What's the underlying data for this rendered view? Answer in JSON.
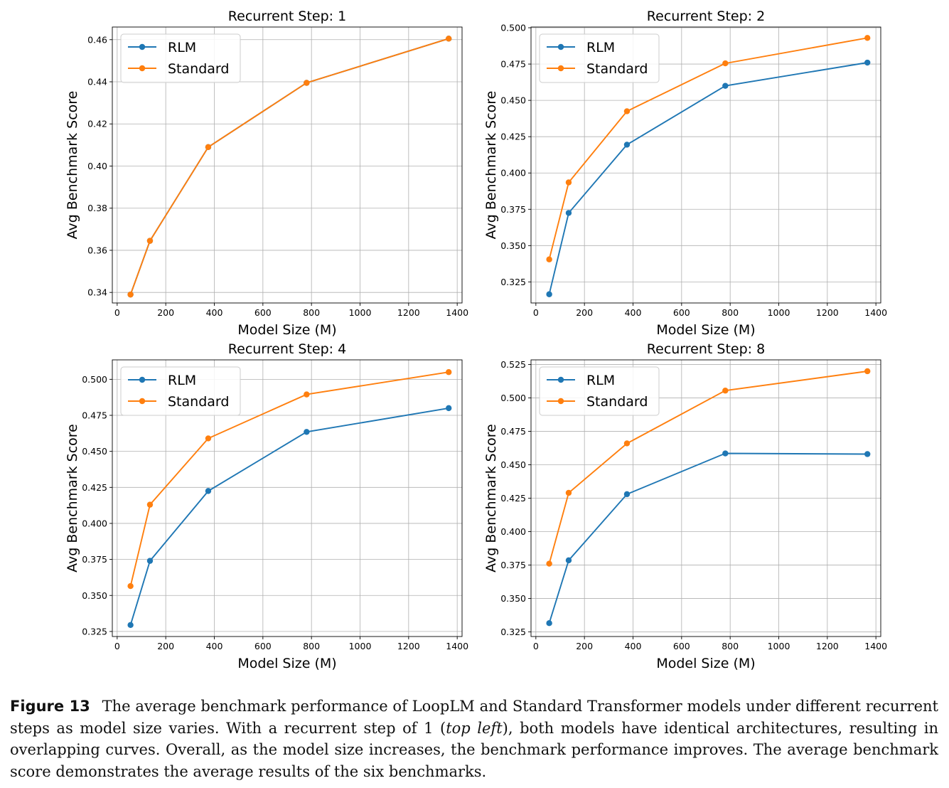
{
  "chart_data": [
    {
      "type": "line",
      "title": "Recurrent Step: 1",
      "xlabel": "Model Size (M)",
      "ylabel": "Avg Benchmark Score",
      "xlim": [
        -20,
        1420
      ],
      "ylim": [
        0.335,
        0.466
      ],
      "xticks": [
        0,
        200,
        400,
        600,
        800,
        1000,
        1200,
        1400
      ],
      "yticks": [
        0.34,
        0.36,
        0.38,
        0.4,
        0.42,
        0.44,
        0.46
      ],
      "ytick_labels": [
        "0.34",
        "0.36",
        "0.38",
        "0.40",
        "0.42",
        "0.44",
        "0.46"
      ],
      "grid": true,
      "legend": "upper-left",
      "x": [
        55,
        135,
        375,
        780,
        1365
      ],
      "series": [
        {
          "name": "RLM",
          "color": "#1f77b4",
          "values": [
            0.339,
            0.3645,
            0.409,
            0.4395,
            0.4605
          ]
        },
        {
          "name": "Standard",
          "color": "#ff7f0e",
          "values": [
            0.339,
            0.3645,
            0.409,
            0.4395,
            0.4605
          ]
        }
      ]
    },
    {
      "type": "line",
      "title": "Recurrent Step: 2",
      "xlabel": "Model Size (M)",
      "ylabel": "Avg Benchmark Score",
      "xlim": [
        -20,
        1420
      ],
      "ylim": [
        0.3105,
        0.5005
      ],
      "xticks": [
        0,
        200,
        400,
        600,
        800,
        1000,
        1200,
        1400
      ],
      "yticks": [
        0.325,
        0.35,
        0.375,
        0.4,
        0.425,
        0.45,
        0.475,
        0.5
      ],
      "ytick_labels": [
        "0.325",
        "0.350",
        "0.375",
        "0.400",
        "0.425",
        "0.450",
        "0.475",
        "0.500"
      ],
      "grid": true,
      "legend": "upper-left",
      "x": [
        55,
        135,
        375,
        780,
        1365
      ],
      "series": [
        {
          "name": "RLM",
          "color": "#1f77b4",
          "values": [
            0.3165,
            0.3725,
            0.4195,
            0.46,
            0.476
          ]
        },
        {
          "name": "Standard",
          "color": "#ff7f0e",
          "values": [
            0.3405,
            0.3935,
            0.4425,
            0.4755,
            0.493
          ]
        }
      ]
    },
    {
      "type": "line",
      "title": "Recurrent Step: 4",
      "xlabel": "Model Size (M)",
      "ylabel": "Avg Benchmark Score",
      "xlim": [
        -20,
        1420
      ],
      "ylim": [
        0.3215,
        0.5135
      ],
      "xticks": [
        0,
        200,
        400,
        600,
        800,
        1000,
        1200,
        1400
      ],
      "yticks": [
        0.325,
        0.35,
        0.375,
        0.4,
        0.425,
        0.45,
        0.475,
        0.5
      ],
      "ytick_labels": [
        "0.325",
        "0.350",
        "0.375",
        "0.400",
        "0.425",
        "0.450",
        "0.475",
        "0.500"
      ],
      "grid": true,
      "legend": "upper-left",
      "x": [
        55,
        135,
        375,
        780,
        1365
      ],
      "series": [
        {
          "name": "RLM",
          "color": "#1f77b4",
          "values": [
            0.3295,
            0.374,
            0.4225,
            0.4635,
            0.48
          ]
        },
        {
          "name": "Standard",
          "color": "#ff7f0e",
          "values": [
            0.3565,
            0.413,
            0.459,
            0.4895,
            0.505
          ]
        }
      ]
    },
    {
      "type": "line",
      "title": "Recurrent Step: 8",
      "xlabel": "Model Size (M)",
      "ylabel": "Avg Benchmark Score",
      "xlim": [
        -20,
        1420
      ],
      "ylim": [
        0.3215,
        0.5285
      ],
      "xticks": [
        0,
        200,
        400,
        600,
        800,
        1000,
        1200,
        1400
      ],
      "yticks": [
        0.325,
        0.35,
        0.375,
        0.4,
        0.425,
        0.45,
        0.475,
        0.5,
        0.525
      ],
      "ytick_labels": [
        "0.325",
        "0.350",
        "0.375",
        "0.400",
        "0.425",
        "0.450",
        "0.475",
        "0.500",
        "0.525"
      ],
      "grid": true,
      "legend": "upper-left",
      "x": [
        55,
        135,
        375,
        780,
        1365
      ],
      "series": [
        {
          "name": "RLM",
          "color": "#1f77b4",
          "values": [
            0.3315,
            0.3785,
            0.428,
            0.4585,
            0.458
          ]
        },
        {
          "name": "Standard",
          "color": "#ff7f0e",
          "values": [
            0.376,
            0.429,
            0.466,
            0.5055,
            0.52
          ]
        }
      ]
    }
  ],
  "caption": {
    "label": "Figure 13",
    "text_before_em": "The average benchmark performance of LoopLM and Standard Transformer models under different recurrent steps as model size varies. With a recurrent step of 1 (",
    "em": "top left",
    "text_after_em": "), both models have identical architectures, resulting in overlapping curves. Overall, as the model size increases, the benchmark performance improves. The average benchmark score demonstrates the average results of the six benchmarks."
  }
}
